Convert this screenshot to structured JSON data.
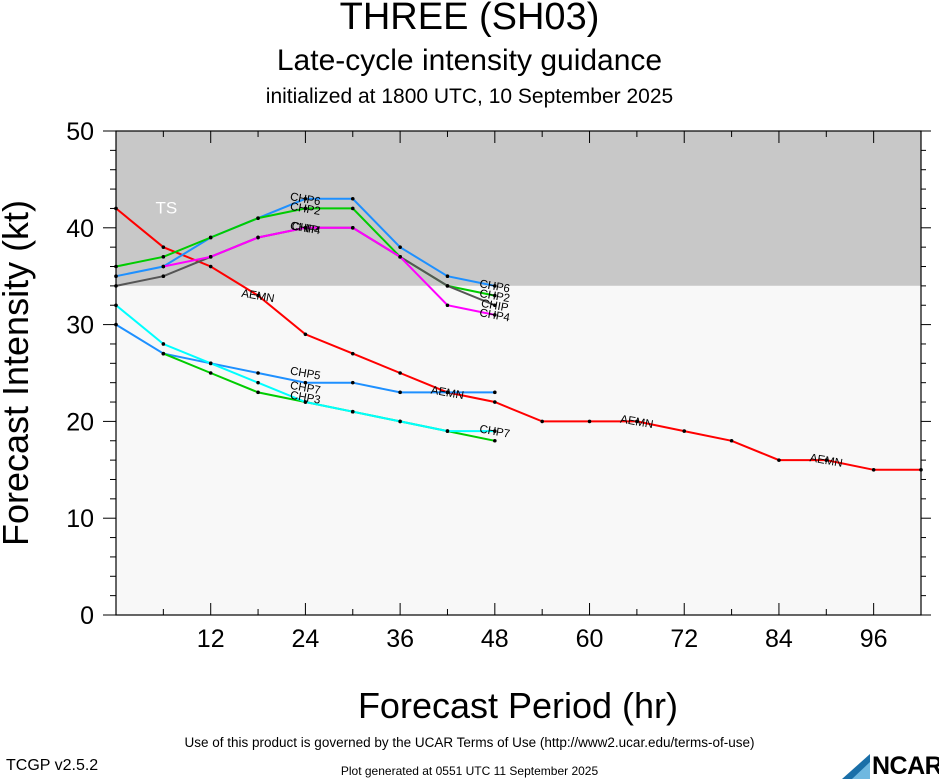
{
  "chart_data": {
    "type": "line",
    "title": "THREE (SH03)",
    "subtitle": "Late-cycle intensity guidance",
    "subtitle2": "initialized at 1800 UTC, 10 September 2025",
    "xlabel": "Forecast Period (hr)",
    "ylabel": "Forecast Intensity (kt)",
    "xlim": [
      0,
      102
    ],
    "ylim": [
      0,
      50
    ],
    "x_ticks": [
      12,
      24,
      36,
      48,
      60,
      72,
      84,
      96
    ],
    "y_ticks": [
      0,
      10,
      20,
      30,
      40,
      50
    ],
    "bands": [
      {
        "label": "TS",
        "from": 34,
        "to": 50,
        "color": "#c8c8c8"
      },
      {
        "label": "",
        "from": 0,
        "to": 34,
        "color": "#f8f8f8"
      }
    ],
    "series": [
      {
        "name": "AEMN",
        "color": "#ff0000",
        "points": [
          [
            0,
            42
          ],
          [
            6,
            38
          ],
          [
            12,
            36
          ],
          [
            18,
            33
          ],
          [
            24,
            29
          ],
          [
            30,
            27
          ],
          [
            36,
            25
          ],
          [
            42,
            23
          ],
          [
            48,
            22
          ],
          [
            54,
            20
          ],
          [
            60,
            20
          ],
          [
            66,
            20
          ],
          [
            72,
            19
          ],
          [
            78,
            18
          ],
          [
            84,
            16
          ],
          [
            90,
            16
          ],
          [
            96,
            15
          ],
          [
            102,
            15
          ]
        ],
        "labels": [
          [
            18,
            33
          ],
          [
            42,
            23
          ],
          [
            66,
            20
          ],
          [
            90,
            16
          ]
        ]
      },
      {
        "name": "CHP6",
        "color": "#1e90ff",
        "points": [
          [
            0,
            35
          ],
          [
            6,
            36
          ],
          [
            12,
            39
          ],
          [
            18,
            41
          ],
          [
            24,
            43
          ],
          [
            30,
            43
          ],
          [
            36,
            38
          ],
          [
            42,
            35
          ],
          [
            48,
            34
          ]
        ],
        "labels": [
          [
            24,
            43
          ],
          [
            48,
            34
          ]
        ]
      },
      {
        "name": "CHP2",
        "color": "#00cc00",
        "points": [
          [
            0,
            36
          ],
          [
            6,
            37
          ],
          [
            12,
            39
          ],
          [
            18,
            41
          ],
          [
            24,
            42
          ],
          [
            30,
            42
          ],
          [
            36,
            37
          ],
          [
            42,
            34
          ],
          [
            48,
            33
          ]
        ],
        "labels": [
          [
            24,
            42
          ],
          [
            48,
            33
          ]
        ]
      },
      {
        "name": "CHIP",
        "color": "#555555",
        "points": [
          [
            0,
            34
          ],
          [
            6,
            35
          ],
          [
            12,
            37
          ],
          [
            18,
            39
          ],
          [
            24,
            40
          ],
          [
            30,
            40
          ],
          [
            36,
            37
          ],
          [
            42,
            34
          ],
          [
            48,
            32
          ]
        ],
        "labels": [
          [
            24,
            40
          ],
          [
            48,
            32
          ]
        ]
      },
      {
        "name": "CHP4",
        "color": "#ff00ff",
        "points": [
          [
            6,
            36
          ],
          [
            12,
            37
          ],
          [
            18,
            39
          ],
          [
            24,
            40
          ],
          [
            30,
            40
          ],
          [
            36,
            37
          ],
          [
            42,
            32
          ],
          [
            48,
            31
          ]
        ],
        "labels": [
          [
            24,
            40
          ],
          [
            48,
            31
          ]
        ]
      },
      {
        "name": "CHP5",
        "color": "#1e90ff",
        "points": [
          [
            0,
            30
          ],
          [
            6,
            27
          ],
          [
            12,
            26
          ],
          [
            18,
            25
          ],
          [
            24,
            24
          ],
          [
            30,
            24
          ],
          [
            36,
            23
          ],
          [
            42,
            23
          ],
          [
            48,
            23
          ]
        ],
        "labels": [
          [
            24,
            25
          ]
        ]
      },
      {
        "name": "CHP3",
        "color": "#00cc00",
        "points": [
          [
            6,
            27
          ],
          [
            12,
            25
          ],
          [
            18,
            23
          ],
          [
            24,
            22
          ],
          [
            30,
            21
          ],
          [
            36,
            20
          ],
          [
            42,
            19
          ],
          [
            48,
            18
          ]
        ],
        "labels": [
          [
            24,
            22.5
          ]
        ]
      },
      {
        "name": "CHP7",
        "color": "#00ffff",
        "points": [
          [
            0,
            32
          ],
          [
            6,
            28
          ],
          [
            12,
            26
          ],
          [
            18,
            24
          ],
          [
            24,
            22
          ],
          [
            30,
            21
          ],
          [
            36,
            20
          ],
          [
            42,
            19
          ],
          [
            48,
            19
          ]
        ],
        "labels": [
          [
            24,
            23.5
          ],
          [
            48,
            19
          ]
        ]
      }
    ]
  },
  "footer": {
    "terms": "Use of this product is governed by the UCAR Terms of Use (http://www2.ucar.edu/terms-of-use)",
    "version": "TCGP v2.5.2",
    "generated": "Plot generated at 0551 UTC   11 September 2025",
    "logo": "NCAR"
  }
}
